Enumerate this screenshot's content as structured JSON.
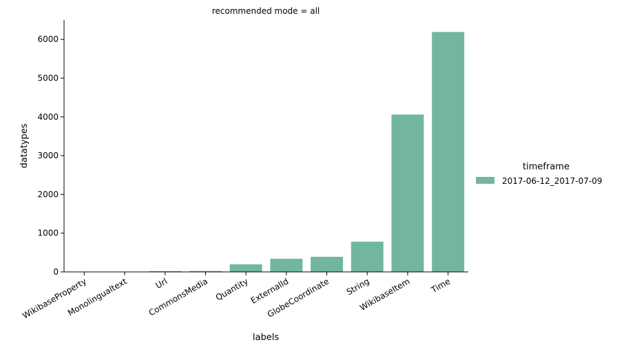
{
  "chart_data": {
    "type": "bar",
    "title": "recommended mode = all",
    "xlabel": "labels",
    "ylabel": "datatypes",
    "categories": [
      "WikibaseProperty",
      "Monolingualtext",
      "Url",
      "CommonsMedia",
      "Quantity",
      "ExternalId",
      "GlobeCoordinate",
      "String",
      "WikibaseItem",
      "Time"
    ],
    "series": [
      {
        "name": "2017-06-12_2017-07-09",
        "color": "#72b6a1",
        "values": [
          2,
          4,
          20,
          22,
          195,
          340,
          390,
          780,
          4060,
          6190
        ]
      }
    ],
    "ylim": [
      0,
      6500
    ],
    "yticks": [
      0,
      1000,
      2000,
      3000,
      4000,
      5000,
      6000
    ],
    "legend": {
      "title": "timeframe",
      "position": "right"
    },
    "grid": false
  }
}
